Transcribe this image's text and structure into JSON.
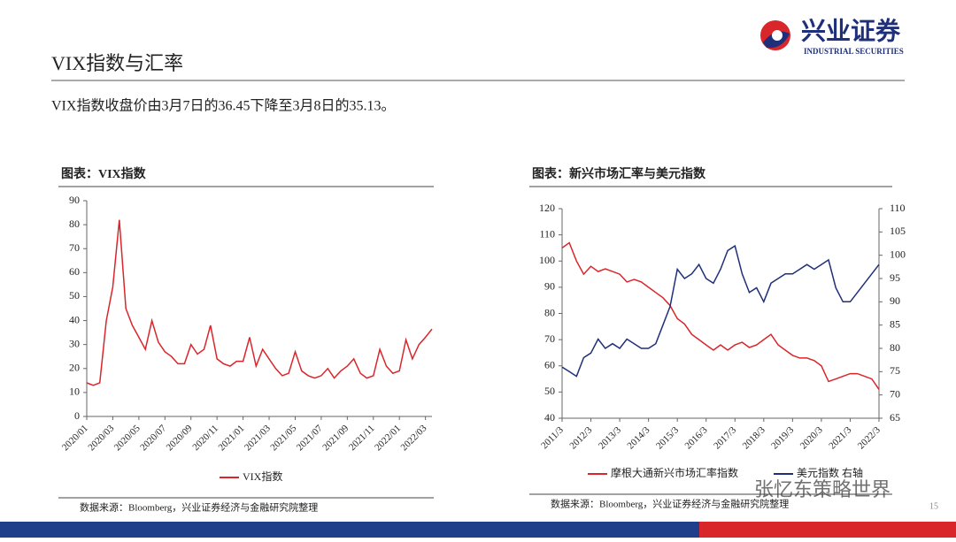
{
  "header": {
    "title": "VIX指数与汇率",
    "subtitle": "VIX指数收盘价由3月7日的36.45下降至3月8日的35.13。",
    "logo": "兴业证券",
    "logo_en": "INDUSTRIAL SECURITIES"
  },
  "chart_data": [
    {
      "type": "line",
      "title": "图表：VIX指数",
      "categories": [
        "2020/01",
        null,
        null,
        null,
        "2020/03",
        null,
        null,
        null,
        "2020/05",
        null,
        null,
        null,
        "2020/07",
        null,
        null,
        null,
        "2020/09",
        null,
        null,
        null,
        "2020/11",
        null,
        null,
        null,
        "2021/01",
        null,
        null,
        null,
        "2021/03",
        null,
        null,
        null,
        "2021/05",
        null,
        null,
        null,
        "2021/07",
        null,
        null,
        null,
        "2021/09",
        null,
        null,
        null,
        "2021/11",
        null,
        null,
        null,
        "2022/01",
        null,
        null,
        null,
        "2022/03",
        null
      ],
      "series": [
        {
          "name": "VIX指数",
          "color": "#d9262b",
          "values": [
            14,
            13,
            14,
            40,
            54,
            82,
            45,
            38,
            33,
            28,
            40,
            31,
            27,
            25,
            22,
            22,
            30,
            26,
            28,
            38,
            24,
            22,
            21,
            23,
            23,
            33,
            21,
            28,
            24,
            20,
            17,
            18,
            27,
            19,
            17,
            16,
            17,
            20,
            16,
            19,
            21,
            24,
            18,
            16,
            17,
            28,
            21,
            18,
            19,
            32,
            24,
            30,
            33,
            36.45
          ]
        }
      ],
      "ylim": [
        0,
        90
      ],
      "yticks": [
        0,
        10,
        20,
        30,
        40,
        50,
        60,
        70,
        80,
        90
      ],
      "source": "数据来源：Bloomberg，兴业证券经济与金融研究院整理"
    },
    {
      "type": "line",
      "title": "图表：新兴市场汇率与美元指数",
      "categories": [
        "2011/3",
        null,
        null,
        null,
        "2012/3",
        null,
        null,
        null,
        "2013/3",
        null,
        null,
        null,
        "2014/3",
        null,
        null,
        null,
        "2015/3",
        null,
        null,
        null,
        "2016/3",
        null,
        null,
        null,
        "2017/3",
        null,
        null,
        null,
        "2018/3",
        null,
        null,
        null,
        "2019/3",
        null,
        null,
        null,
        "2020/3",
        null,
        null,
        null,
        "2021/3",
        null,
        null,
        null,
        "2022/3"
      ],
      "series": [
        {
          "name": "摩根大通新兴市场汇率指数",
          "color": "#d9262b",
          "values": [
            105,
            107,
            100,
            95,
            98,
            96,
            97,
            96,
            95,
            92,
            93,
            92,
            90,
            88,
            86,
            83,
            78,
            76,
            72,
            70,
            68,
            66,
            68,
            66,
            68,
            69,
            67,
            68,
            70,
            72,
            68,
            66,
            64,
            63,
            63,
            62,
            60,
            54,
            55,
            56,
            57,
            57,
            56,
            55,
            51
          ]
        },
        {
          "name": "美元指数 右轴",
          "color": "#1f2f7a",
          "axis": "y2",
          "values": [
            76,
            75,
            74,
            78,
            79,
            82,
            80,
            81,
            80,
            82,
            81,
            80,
            80,
            81,
            85,
            89,
            97,
            95,
            96,
            98,
            95,
            94,
            97,
            101,
            102,
            96,
            92,
            93,
            90,
            94,
            95,
            96,
            96,
            97,
            98,
            97,
            98,
            99,
            93,
            90,
            90,
            92,
            94,
            96,
            98
          ]
        }
      ],
      "ylim": [
        40,
        120
      ],
      "yticks": [
        40,
        50,
        60,
        70,
        80,
        90,
        100,
        110,
        120
      ],
      "y2lim": [
        65,
        110
      ],
      "y2ticks": [
        65,
        70,
        75,
        80,
        85,
        90,
        95,
        100,
        105,
        110
      ],
      "source": "数据来源：Bloomberg，兴业证券经济与金融研究院整理"
    }
  ],
  "watermark": "张忆东策略世界",
  "page_number": "15"
}
